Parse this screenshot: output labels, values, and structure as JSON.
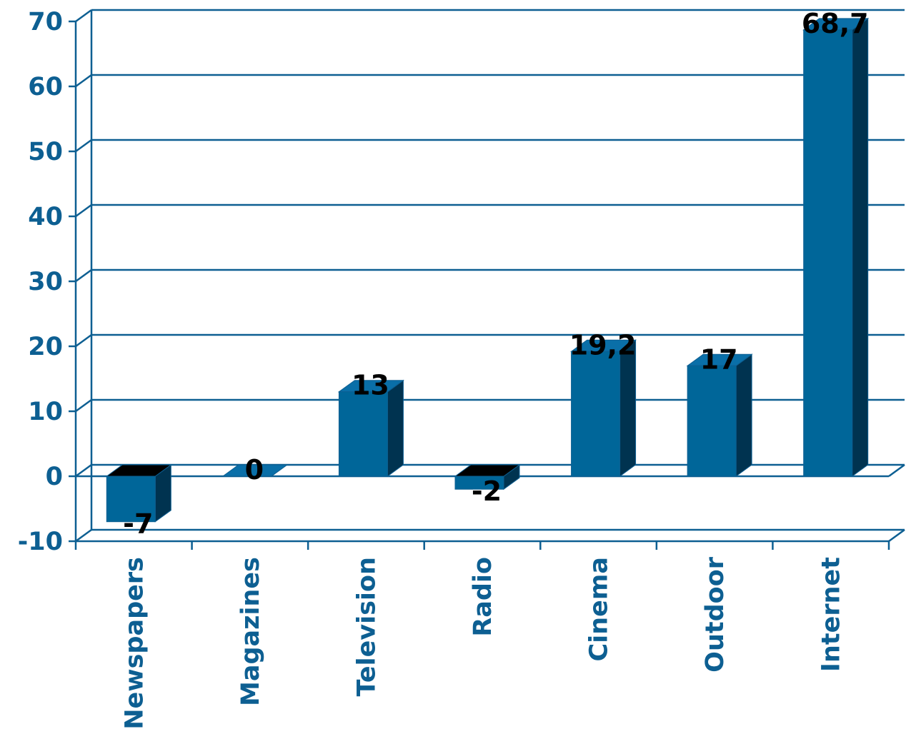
{
  "chart_data": {
    "type": "bar",
    "categories": [
      "Newspapers",
      "Magazines",
      "Television",
      "Radio",
      "Cinema",
      "Outdoor",
      "Internet"
    ],
    "values": [
      -7,
      0,
      13,
      -2,
      19.2,
      17,
      68.7
    ],
    "data_labels": [
      "-7",
      "0",
      "13",
      "-2",
      "19,2",
      "17",
      "68,7"
    ],
    "title": "",
    "xlabel": "",
    "ylabel": "",
    "ylim": [
      -10,
      70
    ],
    "yticks": [
      -10,
      0,
      10,
      20,
      30,
      40,
      50,
      60,
      70
    ],
    "ytick_labels": [
      "-10",
      "0",
      "10",
      "20",
      "30",
      "40",
      "50",
      "60",
      "70"
    ],
    "grid": true,
    "legend": "none",
    "three_d": true,
    "colors": {
      "bar_front": "#006699",
      "bar_side": "#003350",
      "bar_top": "#0a6fa8",
      "axis": "#0d5f92",
      "tick_label": "#0d5f92",
      "data_label": "#000000"
    }
  }
}
